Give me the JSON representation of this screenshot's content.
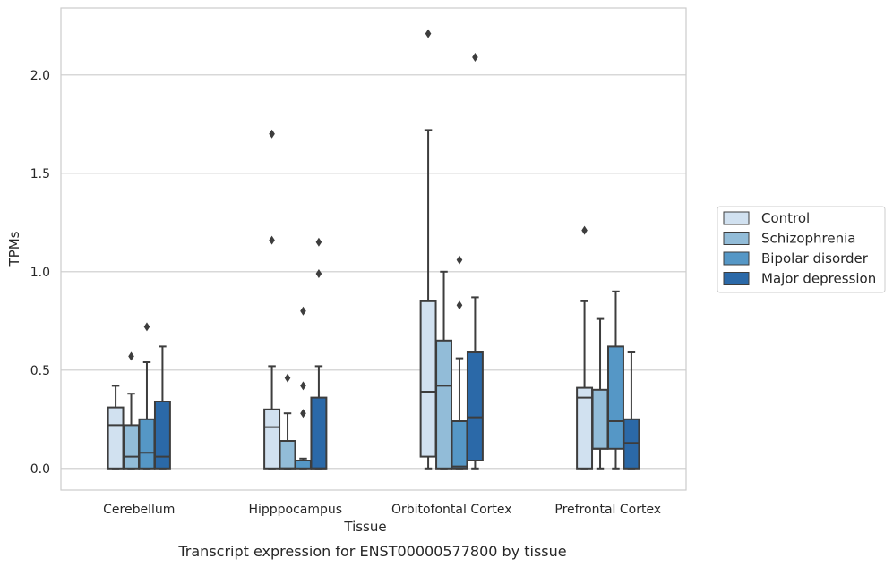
{
  "caption": "Transcript expression for ENST00000577800 by tissue",
  "chart_data": {
    "type": "boxplot",
    "xlabel": "Tissue",
    "ylabel": "TPMs",
    "ylim": [
      -0.11,
      2.34
    ],
    "yticks": [
      0.0,
      0.5,
      1.0,
      1.5,
      2.0
    ],
    "ytick_labels": [
      "0.0",
      "0.5",
      "1.0",
      "1.5",
      "2.0"
    ],
    "grid": "horizontal",
    "legend_position": "right",
    "categories": [
      "Cerebellum",
      "Hipppocampus",
      "Orbitofontal Cortex",
      "Prefrontal Cortex"
    ],
    "series": [
      {
        "name": "Control",
        "color": "#d1e1f0",
        "boxes": [
          {
            "whislo": 0.0,
            "q1": 0.0,
            "med": 0.22,
            "q3": 0.31,
            "whishi": 0.42,
            "fliers": []
          },
          {
            "whislo": 0.0,
            "q1": 0.0,
            "med": 0.21,
            "q3": 0.3,
            "whishi": 0.52,
            "fliers": [
              1.16,
              1.7
            ]
          },
          {
            "whislo": 0.0,
            "q1": 0.06,
            "med": 0.39,
            "q3": 0.85,
            "whishi": 1.72,
            "fliers": [
              2.21
            ]
          },
          {
            "whislo": 0.0,
            "q1": 0.0,
            "med": 0.36,
            "q3": 0.41,
            "whishi": 0.85,
            "fliers": [
              1.21
            ]
          }
        ]
      },
      {
        "name": "Schizophrenia",
        "color": "#92bcd8",
        "boxes": [
          {
            "whislo": 0.0,
            "q1": 0.0,
            "med": 0.06,
            "q3": 0.22,
            "whishi": 0.38,
            "fliers": [
              0.57
            ]
          },
          {
            "whislo": 0.0,
            "q1": 0.0,
            "med": 0.0,
            "q3": 0.14,
            "whishi": 0.28,
            "fliers": [
              0.46
            ]
          },
          {
            "whislo": 0.0,
            "q1": 0.0,
            "med": 0.42,
            "q3": 0.65,
            "whishi": 1.0,
            "fliers": []
          },
          {
            "whislo": 0.0,
            "q1": 0.1,
            "med": 0.1,
            "q3": 0.4,
            "whishi": 0.76,
            "fliers": []
          }
        ]
      },
      {
        "name": "Bipolar disorder",
        "color": "#5597c6",
        "boxes": [
          {
            "whislo": 0.0,
            "q1": 0.0,
            "med": 0.08,
            "q3": 0.25,
            "whishi": 0.54,
            "fliers": [
              0.72
            ]
          },
          {
            "whislo": 0.0,
            "q1": 0.0,
            "med": 0.04,
            "q3": 0.04,
            "whishi": 0.05,
            "fliers": [
              0.28,
              0.42,
              0.8
            ]
          },
          {
            "whislo": 0.0,
            "q1": 0.0,
            "med": 0.01,
            "q3": 0.24,
            "whishi": 0.56,
            "fliers": [
              0.83,
              1.06
            ]
          },
          {
            "whislo": 0.0,
            "q1": 0.1,
            "med": 0.24,
            "q3": 0.62,
            "whishi": 0.9,
            "fliers": []
          }
        ]
      },
      {
        "name": "Major depression",
        "color": "#2b69a8",
        "boxes": [
          {
            "whislo": 0.0,
            "q1": 0.0,
            "med": 0.06,
            "q3": 0.34,
            "whishi": 0.62,
            "fliers": []
          },
          {
            "whislo": 0.0,
            "q1": 0.0,
            "med": 0.0,
            "q3": 0.36,
            "whishi": 0.52,
            "fliers": [
              0.99,
              1.15
            ]
          },
          {
            "whislo": 0.0,
            "q1": 0.04,
            "med": 0.26,
            "q3": 0.59,
            "whishi": 0.87,
            "fliers": [
              2.09
            ]
          },
          {
            "whislo": 0.0,
            "q1": 0.0,
            "med": 0.13,
            "q3": 0.25,
            "whishi": 0.59,
            "fliers": []
          }
        ]
      }
    ]
  }
}
